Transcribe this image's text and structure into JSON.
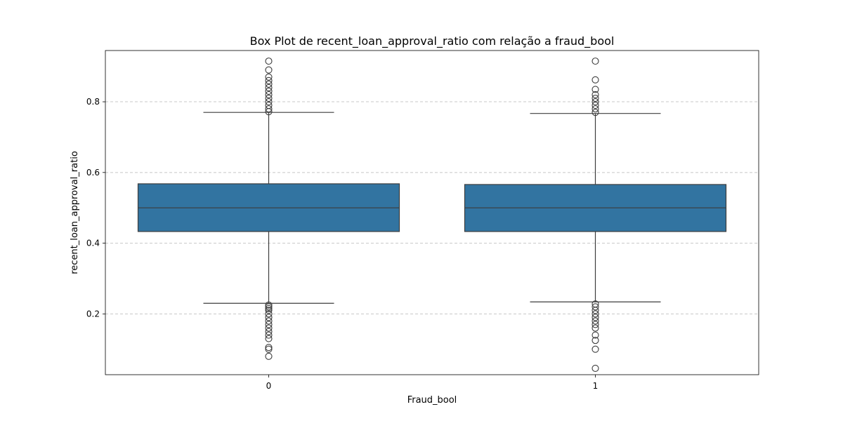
{
  "chart_data": {
    "type": "box",
    "title": "Box Plot de recent_loan_approval_ratio com relação a fraud_bool",
    "xlabel": "Fraud_bool",
    "ylabel": "recent_loan_approval_ratio",
    "categories": [
      "0",
      "1"
    ],
    "ylim": [
      0.028,
      0.945
    ],
    "yticks": [
      0.2,
      0.4,
      0.6,
      0.8
    ],
    "ytick_labels": [
      "0.2",
      "0.4",
      "0.6",
      "0.8"
    ],
    "grid": "y-dashed",
    "boxes": [
      {
        "category": "0",
        "whisker_low": 0.23,
        "q1": 0.433,
        "median": 0.5,
        "q3": 0.568,
        "whisker_high": 0.77,
        "outliers": [
          0.08,
          0.1,
          0.105,
          0.13,
          0.14,
          0.15,
          0.16,
          0.17,
          0.18,
          0.19,
          0.2,
          0.21,
          0.215,
          0.22,
          0.225,
          0.772,
          0.78,
          0.79,
          0.8,
          0.81,
          0.82,
          0.83,
          0.84,
          0.85,
          0.86,
          0.87,
          0.89,
          0.915
        ]
      },
      {
        "category": "1",
        "whisker_low": 0.234,
        "q1": 0.433,
        "median": 0.5,
        "q3": 0.566,
        "whisker_high": 0.767,
        "outliers": [
          0.046,
          0.1,
          0.125,
          0.14,
          0.16,
          0.17,
          0.18,
          0.19,
          0.2,
          0.21,
          0.22,
          0.228,
          0.77,
          0.78,
          0.79,
          0.8,
          0.81,
          0.82,
          0.835,
          0.862,
          0.915
        ]
      }
    ],
    "box_color": "#3274a1",
    "line_color": "#3d3d3d",
    "grid_color": "#c8c8c8"
  }
}
